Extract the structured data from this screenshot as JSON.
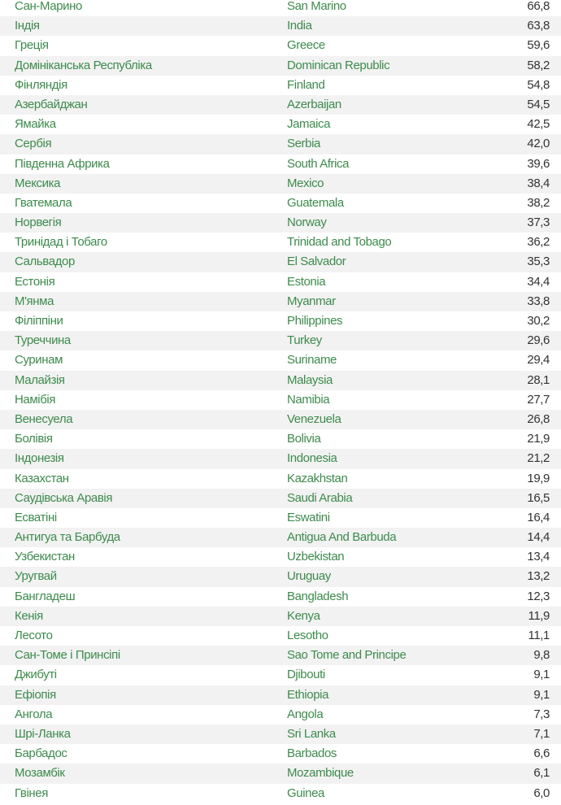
{
  "table": {
    "rows": [
      [
        "Сан-Марино",
        "San Marino",
        "66,8"
      ],
      [
        "Індія",
        "India",
        "63,8"
      ],
      [
        "Греція",
        "Greece",
        "59,6"
      ],
      [
        "Домініканська Республіка",
        "Dominican Republic",
        "58,2"
      ],
      [
        "Фінляндія",
        "Finland",
        "54,8"
      ],
      [
        "Азербайджан",
        "Azerbaijan",
        "54,5"
      ],
      [
        "Ямайка",
        "Jamaica",
        "42,5"
      ],
      [
        "Сербія",
        "Serbia",
        "42,0"
      ],
      [
        "Південна Африка",
        "South Africa",
        "39,6"
      ],
      [
        "Мексика",
        "Mexico",
        "38,4"
      ],
      [
        "Гватемала",
        "Guatemala",
        "38,2"
      ],
      [
        "Норвегія",
        "Norway",
        "37,3"
      ],
      [
        "Тринідад і Тобаго",
        "Trinidad and Tobago",
        "36,2"
      ],
      [
        "Сальвадор",
        "El Salvador",
        "35,3"
      ],
      [
        "Естонія",
        "Estonia",
        "34,4"
      ],
      [
        "М'янма",
        "Myanmar",
        "33,8"
      ],
      [
        "Філіппіни",
        "Philippines",
        "30,2"
      ],
      [
        "Туреччина",
        "Turkey",
        "29,6"
      ],
      [
        "Суринам",
        "Suriname",
        "29,4"
      ],
      [
        "Малайзія",
        "Malaysia",
        "28,1"
      ],
      [
        "Намібія",
        "Namibia",
        "27,7"
      ],
      [
        "Венесуела",
        "Venezuela",
        "26,8"
      ],
      [
        "Болівія",
        "Bolivia",
        "21,9"
      ],
      [
        "Індонезія",
        "Indonesia",
        "21,2"
      ],
      [
        "Казахстан",
        "Kazakhstan",
        "19,9"
      ],
      [
        "Саудівська Аравія",
        "Saudi Arabia",
        "16,5"
      ],
      [
        "Есватіні",
        "Eswatini",
        "16,4"
      ],
      [
        "Антигуа та Барбуда",
        "Antigua And Barbuda",
        "14,4"
      ],
      [
        "Узбекистан",
        "Uzbekistan",
        "13,4"
      ],
      [
        "Уругвай",
        "Uruguay",
        "13,2"
      ],
      [
        "Бангладеш",
        "Bangladesh",
        "12,3"
      ],
      [
        "Кенія",
        "Kenya",
        "11,9"
      ],
      [
        "Лесото",
        "Lesotho",
        "11,1"
      ],
      [
        "Сан-Томе і Принсіпі",
        "Sao Tome and Principe",
        "9,8"
      ],
      [
        "Джибуті",
        "Djibouti",
        "9,1"
      ],
      [
        "Ефіопія",
        "Ethiopia",
        "9,1"
      ],
      [
        "Ангола",
        "Angola",
        "7,3"
      ],
      [
        "Шрі-Ланка",
        "Sri Lanka",
        "7,1"
      ],
      [
        "Барбадос",
        "Barbados",
        "6,6"
      ],
      [
        "Мозамбік",
        "Mozambique",
        "6,1"
      ],
      [
        "Гвінея",
        "Guinea",
        "6,0"
      ]
    ]
  }
}
